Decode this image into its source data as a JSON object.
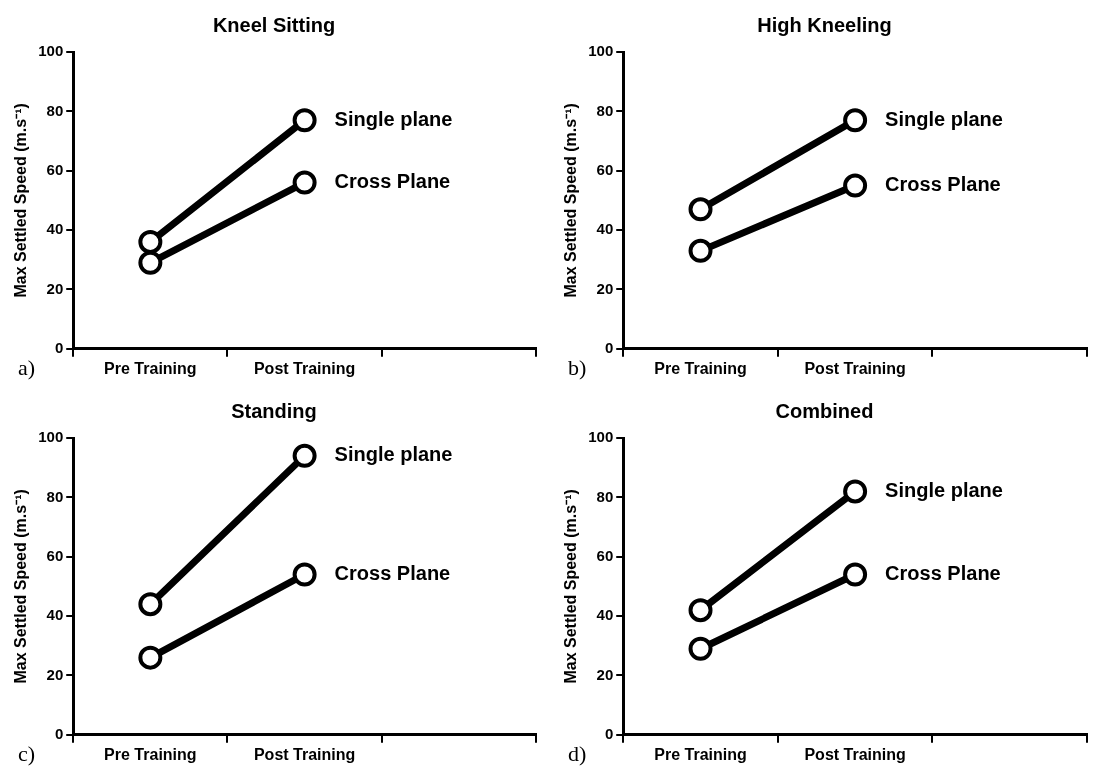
{
  "chart_data": [
    {
      "type": "line",
      "title": "Kneel Sitting",
      "ylabel": "Max Settled Speed (m.s⁻¹)",
      "categories": [
        "Pre Training",
        "Post Training",
        null
      ],
      "ylim": [
        0,
        100
      ],
      "yticks": [
        0,
        20,
        40,
        60,
        80,
        100
      ],
      "marker": "circle",
      "legend": false,
      "annotations": [
        "a)"
      ],
      "series": [
        {
          "name": "Single plane",
          "color": "#000000",
          "values": [
            36,
            77,
            null
          ]
        },
        {
          "name": "Cross Plane",
          "color": "#000000",
          "values": [
            29,
            56,
            null
          ]
        }
      ]
    },
    {
      "type": "line",
      "title": "High Kneeling",
      "ylabel": "Max Settled Speed (m.s⁻¹)",
      "categories": [
        "Pre Training",
        "Post Training",
        null
      ],
      "ylim": [
        0,
        100
      ],
      "yticks": [
        0,
        20,
        40,
        60,
        80,
        100
      ],
      "marker": "circle",
      "legend": false,
      "annotations": [
        "b)"
      ],
      "series": [
        {
          "name": "Single plane",
          "color": "#000000",
          "values": [
            47,
            77,
            null
          ]
        },
        {
          "name": "Cross Plane",
          "color": "#000000",
          "values": [
            33,
            55,
            null
          ]
        }
      ]
    },
    {
      "type": "line",
      "title": "Standing",
      "ylabel": "Max Settled Speed (m.s⁻¹)",
      "categories": [
        "Pre Training",
        "Post Training",
        null
      ],
      "ylim": [
        0,
        100
      ],
      "yticks": [
        0,
        20,
        40,
        60,
        80,
        100
      ],
      "marker": "circle",
      "legend": false,
      "annotations": [
        "c)"
      ],
      "series": [
        {
          "name": "Single plane",
          "color": "#000000",
          "values": [
            44,
            94,
            null
          ]
        },
        {
          "name": "Cross Plane",
          "color": "#000000",
          "values": [
            26,
            54,
            null
          ]
        }
      ]
    },
    {
      "type": "line",
      "title": "Combined",
      "ylabel": "Max Settled Speed (m.s⁻¹)",
      "categories": [
        "Pre Training",
        "Post Training",
        null
      ],
      "ylim": [
        0,
        100
      ],
      "yticks": [
        0,
        20,
        40,
        60,
        80,
        100
      ],
      "marker": "circle",
      "legend": false,
      "annotations": [
        "d)"
      ],
      "series": [
        {
          "name": "Single plane",
          "color": "#000000",
          "values": [
            42,
            82,
            null
          ]
        },
        {
          "name": "Cross Plane",
          "color": "#000000",
          "values": [
            29,
            54,
            null
          ]
        }
      ]
    }
  ]
}
